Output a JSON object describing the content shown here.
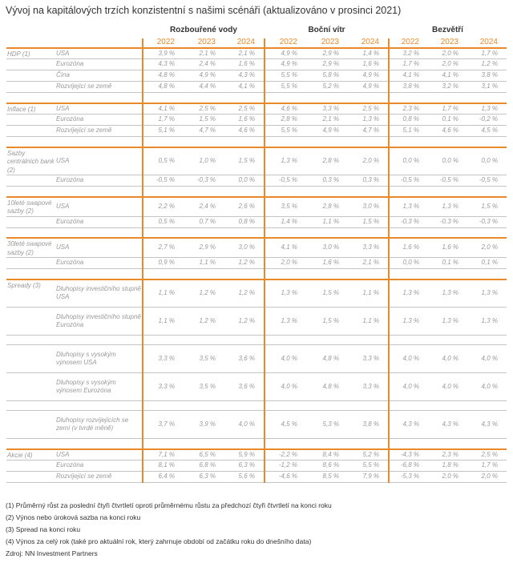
{
  "title": "Vývoj na kapitálových trzích konzistentní s našimi scénáři (aktualizováno v prosinci 2021)",
  "accent_color": "#e98a2a",
  "groups": [
    "Rozbouřené vody",
    "Boční vítr",
    "Bezvětří"
  ],
  "years": [
    "2022",
    "2023",
    "2024"
  ],
  "sections": [
    {
      "label": "HDP (1)",
      "rows": [
        {
          "label": "USA",
          "values": [
            "3,9 %",
            "2,1 %",
            "2,1 %",
            "4,9 %",
            "2,9 %",
            "1,4 %",
            "3,2 %",
            "2,0 %",
            "1,7 %"
          ]
        },
        {
          "label": "Eurozóna",
          "values": [
            "4,3 %",
            "2,4 %",
            "1,6 %",
            "4,9 %",
            "2,9 %",
            "1,6 %",
            "1,7 %",
            "2,0 %",
            "1,2 %"
          ]
        },
        {
          "label": "Čína",
          "values": [
            "4,8 %",
            "4,9 %",
            "4,3 %",
            "5,5 %",
            "5,8 %",
            "4,9 %",
            "4,1 %",
            "4,1 %",
            "3,8 %"
          ]
        },
        {
          "label": "Rozvíjející se země",
          "values": [
            "4,8 %",
            "4,4 %",
            "4,1 %",
            "5,5 %",
            "5,2 %",
            "4,9 %",
            "3,8 %",
            "3,2 %",
            "3,1 %"
          ]
        }
      ]
    },
    {
      "label": "Inflace (1)",
      "rows": [
        {
          "label": "USA",
          "values": [
            "4,1 %",
            "2,5 %",
            "2,5 %",
            "4,6 %",
            "3,3 %",
            "2,5 %",
            "2,3 %",
            "1,7 %",
            "1,3 %"
          ]
        },
        {
          "label": "Eurozóna",
          "values": [
            "1,7 %",
            "1,5 %",
            "1,6 %",
            "2,8 %",
            "2,1 %",
            "1,3 %",
            "0,8 %",
            "0,1 %",
            "-0,2 %"
          ]
        },
        {
          "label": "Rozvíjející se země",
          "values": [
            "5,1 %",
            "4,7 %",
            "4,6 %",
            "5,5 %",
            "4,9 %",
            "4,7 %",
            "5,1 %",
            "4,6 %",
            "4,5 %"
          ]
        }
      ]
    },
    {
      "label": "Sazby centrálních bank (2)",
      "rows": [
        {
          "label": "USA",
          "values": [
            "0,5 %",
            "1,0 %",
            "1,5 %",
            "1,3 %",
            "2,8 %",
            "2,0 %",
            "0,0 %",
            "0,0 %",
            "0,0 %"
          ]
        },
        {
          "label": "Eurozóna",
          "values": [
            "-0,5 %",
            "-0,3 %",
            "0,0 %",
            "-0,5 %",
            "0,3 %",
            "0,3 %",
            "-0,5 %",
            "-0,5 %",
            "-0,5 %"
          ]
        }
      ]
    },
    {
      "label": "10leté swapové sazby (2)",
      "rows": [
        {
          "label": "USA",
          "values": [
            "2,2 %",
            "2,4 %",
            "2,6 %",
            "3,5 %",
            "2,8 %",
            "3,0 %",
            "1,3 %",
            "1,3 %",
            "1,5 %"
          ]
        },
        {
          "label": "Eurozóna",
          "values": [
            "0,5 %",
            "0,7 %",
            "0,8 %",
            "1,4 %",
            "1,1 %",
            "1,5 %",
            "-0,3 %",
            "-0,3 %",
            "-0,3 %"
          ]
        }
      ]
    },
    {
      "label": "30leté swapové sazby (2)",
      "rows": [
        {
          "label": "USA",
          "values": [
            "2,7 %",
            "2,9 %",
            "3,0 %",
            "4,1 %",
            "3,0 %",
            "3,3 %",
            "1,6 %",
            "1,6 %",
            "2,0 %"
          ]
        },
        {
          "label": "Eurozóna",
          "values": [
            "0,9 %",
            "1,1 %",
            "1,2 %",
            "2,0 %",
            "1,6 %",
            "2,1 %",
            "0,0 %",
            "0,1 %",
            "0,1 %"
          ]
        }
      ]
    },
    {
      "label": "Spready (3)",
      "rows": [
        {
          "label": "Dluhopisy investičního stupně USA",
          "values": [
            "1,1 %",
            "1,2 %",
            "1,2 %",
            "1,3 %",
            "1,5 %",
            "1,1 %",
            "1,3 %",
            "1,3 %",
            "1,3 %"
          ]
        },
        {
          "label": "Dluhopisy investičního stupně Eurozóna",
          "values": [
            "1,1 %",
            "1,2 %",
            "1,2 %",
            "1,3 %",
            "1,5 %",
            "1,1 %",
            "1,3 %",
            "1,3 %",
            "1,3 %"
          ]
        },
        {
          "spacer": true
        },
        {
          "label": "Dluhopisy s vysokým výnosem USA",
          "values": [
            "3,3 %",
            "3,5 %",
            "3,6 %",
            "4,0 %",
            "4,8 %",
            "3,3 %",
            "4,0 %",
            "4,0 %",
            "4,0 %"
          ]
        },
        {
          "label": "Dluhopisy s vysokým výnosem Eurozóna",
          "values": [
            "3,3 %",
            "3,5 %",
            "3,6 %",
            "4,0 %",
            "4,8 %",
            "3,3 %",
            "4,0 %",
            "4,0 %",
            "4,0 %"
          ]
        },
        {
          "spacer": true
        },
        {
          "label": "Dluhopisy rozvíjejících se zemí (v tvrdé měně)",
          "values": [
            "3,7 %",
            "3,9 %",
            "4,0 %",
            "4,5 %",
            "5,3 %",
            "3,8 %",
            "4,3 %",
            "4,3 %",
            "4,3 %"
          ]
        }
      ]
    },
    {
      "label": "Akcie (4)",
      "rows": [
        {
          "label": "USA",
          "values": [
            "7,1 %",
            "6,5 %",
            "5,9 %",
            "-2,2 %",
            "8,4 %",
            "5,2 %",
            "-4,3 %",
            "2,3 %",
            "2,5 %"
          ]
        },
        {
          "label": "Eurozóna",
          "values": [
            "8,1 %",
            "6,8 %",
            "6,3 %",
            "-1,2 %",
            "8,6 %",
            "5,5 %",
            "-6,8 %",
            "1,8 %",
            "1,7 %"
          ]
        },
        {
          "label": "Rozvíjející se země",
          "values": [
            "6,4 %",
            "6,3 %",
            "5,6 %",
            "-4,6 %",
            "8,5 %",
            "7,9 %",
            "-5,3 %",
            "2,0 %",
            "2,0 %"
          ]
        }
      ]
    }
  ],
  "footnotes": [
    "(1) Průměrný růst za poslední čtyři čtvrtletí oproti průměrnému růstu za předchozí čtyři čtvrtletí na konci roku",
    "(2) Výnos nebo úroková sazba na konci roku",
    "(3) Spread na konci roku",
    "(4) Výnos za celý rok (také pro aktuální rok, který zahrnuje období od začátku roku do dnešního data)",
    "Zdroj: NN Investment Partners"
  ]
}
